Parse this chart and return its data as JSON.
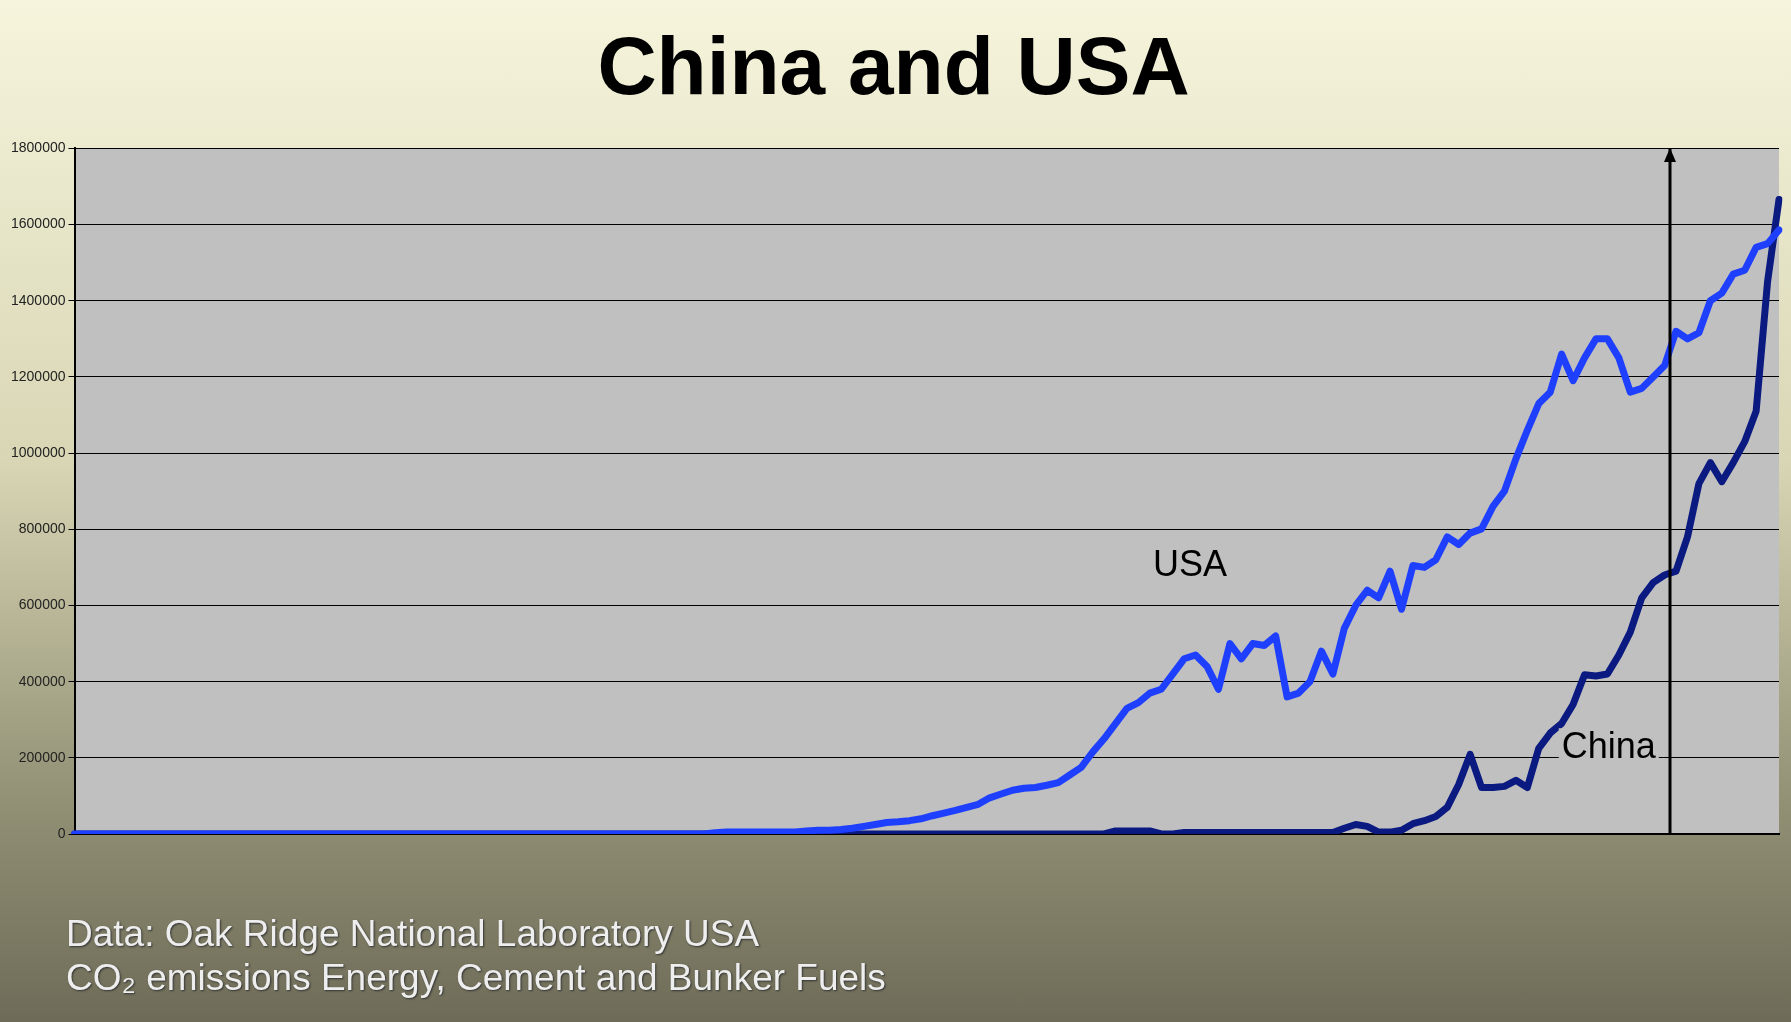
{
  "chart_data": {
    "type": "line",
    "title": "China and USA",
    "annotations": [
      "Data: Oak Ridge National Laboratory USA",
      "CO₂ emissions Energy, Cement and Bunker Fuels"
    ],
    "categories": [
      null,
      null,
      null,
      null,
      null,
      null,
      null,
      null,
      null,
      null,
      null,
      null,
      null,
      null,
      null,
      null,
      null,
      null,
      null,
      null,
      null,
      null,
      null,
      null,
      null,
      null,
      null,
      null,
      null,
      null,
      null,
      null,
      null,
      null,
      null,
      null,
      null,
      null,
      null,
      null,
      null,
      null,
      null,
      null,
      null,
      null,
      null,
      null,
      null,
      null,
      null,
      null,
      null,
      null,
      null,
      null,
      null,
      null,
      null,
      null,
      null,
      null,
      null,
      null,
      null,
      null,
      null,
      null,
      null,
      null,
      null,
      null,
      null,
      null,
      null,
      null,
      null,
      null,
      null,
      null,
      null,
      null,
      null,
      null,
      null,
      null,
      null,
      null,
      null,
      null,
      null,
      null,
      null,
      null,
      null,
      null,
      null,
      null,
      null,
      null,
      null,
      null,
      null,
      null,
      null,
      null,
      null,
      null,
      null,
      null,
      null,
      null,
      null,
      null,
      null,
      null,
      null,
      null,
      null,
      null,
      null,
      null,
      null,
      null,
      null,
      null,
      null,
      null,
      null,
      null,
      null,
      null,
      null,
      null,
      null,
      null,
      null,
      null,
      null,
      null,
      null,
      null,
      null,
      null,
      null,
      null,
      null,
      null,
      null,
      null
    ],
    "series": [
      {
        "name": "USA",
        "color": "#1f3fff",
        "values": [
          0,
          0,
          0,
          0,
          0,
          0,
          0,
          0,
          0,
          0,
          0,
          0,
          0,
          0,
          0,
          0,
          0,
          0,
          0,
          0,
          0,
          0,
          0,
          0,
          0,
          0,
          0,
          0,
          0,
          0,
          0,
          0,
          0,
          0,
          0,
          0,
          0,
          0,
          0,
          0,
          0,
          0,
          0,
          0,
          0,
          0,
          0,
          0,
          0,
          0,
          0,
          0,
          0,
          0,
          0,
          0,
          3000,
          5000,
          5000,
          5000,
          5000,
          5000,
          5000,
          5000,
          8000,
          10000,
          10000,
          12000,
          15000,
          20000,
          25000,
          30000,
          32000,
          35000,
          40000,
          48000,
          55000,
          62000,
          70000,
          78000,
          95000,
          105000,
          115000,
          120000,
          122000,
          128000,
          135000,
          155000,
          175000,
          215000,
          250000,
          290000,
          330000,
          345000,
          370000,
          380000,
          420000,
          460000,
          470000,
          440000,
          380000,
          500000,
          460000,
          500000,
          495000,
          520000,
          360000,
          370000,
          400000,
          480000,
          420000,
          540000,
          600000,
          640000,
          620000,
          690000,
          590000,
          705000,
          700000,
          720000,
          780000,
          760000,
          790000,
          801000,
          860000,
          900000,
          985000,
          1060000,
          1130000,
          1160000,
          1260000,
          1190000,
          1250000,
          1300000,
          1300000,
          1250000,
          1160000,
          1170000,
          1200000,
          1230000,
          1320000,
          1300000,
          1316000,
          1400000,
          1420000,
          1470000,
          1480000,
          1540000,
          1550000,
          1586000
        ]
      },
      {
        "name": "China",
        "color": "#0a1a80",
        "values": [
          0,
          0,
          0,
          0,
          0,
          0,
          0,
          0,
          0,
          0,
          0,
          0,
          0,
          0,
          0,
          0,
          0,
          0,
          0,
          0,
          0,
          0,
          0,
          0,
          0,
          0,
          0,
          0,
          0,
          0,
          0,
          0,
          0,
          0,
          0,
          0,
          0,
          0,
          0,
          0,
          0,
          0,
          0,
          0,
          0,
          0,
          0,
          0,
          0,
          0,
          0,
          0,
          0,
          0,
          0,
          0,
          0,
          0,
          0,
          0,
          0,
          0,
          0,
          0,
          0,
          0,
          0,
          0,
          0,
          0,
          0,
          0,
          0,
          0,
          0,
          0,
          0,
          0,
          0,
          0,
          0,
          0,
          0,
          0,
          0,
          0,
          0,
          0,
          0,
          0,
          0,
          8000,
          8000,
          8000,
          8000,
          0,
          0,
          4000,
          4000,
          4000,
          4000,
          4000,
          4000,
          4000,
          4000,
          4000,
          4000,
          4000,
          4000,
          4000,
          4000,
          15000,
          25000,
          20000,
          5000,
          5000,
          10000,
          27000,
          35000,
          46000,
          70000,
          130000,
          209000,
          122000,
          122000,
          125000,
          141000,
          122000,
          225000,
          265000,
          290000,
          340000,
          418000,
          415000,
          420000,
          470000,
          530000,
          620000,
          660000,
          680000,
          690000,
          780000,
          920000,
          975000,
          925000,
          975000,
          1030000,
          1110000,
          1450000,
          1666000
        ]
      }
    ],
    "ylim": [
      0,
      1800000
    ],
    "yticks": [
      0,
      200000,
      400000,
      600000,
      800000,
      1000000,
      1200000,
      1400000,
      1600000,
      1800000
    ],
    "grid": "y",
    "legend": false,
    "tick_labels": "y",
    "marker": "none",
    "line_style": "solid"
  }
}
